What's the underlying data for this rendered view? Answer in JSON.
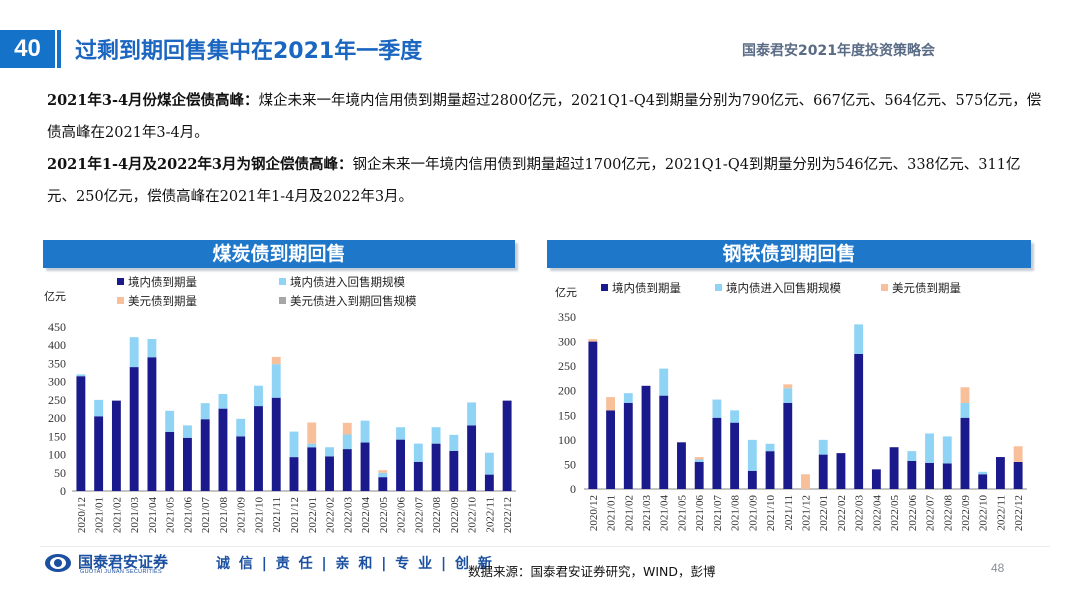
{
  "slide": {
    "number": "40",
    "title": "过剩到期回售集中在2021年一季度",
    "conference": "国泰君安2021年度投资策略会",
    "page": "48"
  },
  "paragraphs": {
    "p1_bold": "2021年3-4月份煤企偿债高峰：",
    "p1_text": "煤企未来一年境内信用债到期量超过2800亿元，2021Q1-Q4到期量分别为790亿元、667亿元、564亿元、575亿元，偿债高峰在2021年3-4月。",
    "p2_bold": "2021年1-4月及2022年3月为钢企偿债高峰：",
    "p2_text": "钢企未来一年境内信用债到期量超过1700亿元，2021Q1-Q4到期量分别为546亿元、338亿元、311亿元、250亿元，偿债高峰在2021年1-4月及2022年3月。"
  },
  "colors": {
    "domestic": "#1a1a8c",
    "domestic_put": "#8fd3f5",
    "usd": "#f7c09a",
    "usd_put": "#a6a6a6",
    "header": "#1f77c9"
  },
  "footer": {
    "logo_cn": "国泰君安证券",
    "logo_en": "GUOTAI JUNAN SECURITIES",
    "motto": "诚 信 | 责 任 | 亲 和 | 专 业 | 创 新",
    "source": "数据来源：国泰君安证券研究，WIND，彭博"
  },
  "chart_data": [
    {
      "type": "bar",
      "stacked": true,
      "title": "煤炭债到期回售",
      "ylabel": "亿元",
      "ylim": [
        0,
        450
      ],
      "yticks": [
        0,
        50,
        100,
        150,
        200,
        250,
        300,
        350,
        400,
        450
      ],
      "grid": false,
      "legend_position": "top",
      "categories": [
        "2020/12",
        "2021/01",
        "2021/02",
        "2021/03",
        "2021/04",
        "2021/05",
        "2021/06",
        "2021/07",
        "2021/08",
        "2021/09",
        "2021/10",
        "2021/11",
        "2021/12",
        "2022/01",
        "2022/02",
        "2022/03",
        "2022/04",
        "2022/05",
        "2022/06",
        "2022/07",
        "2022/08",
        "2022/09",
        "2022/10",
        "2022/11",
        "2022/12"
      ],
      "series": [
        {
          "name": "境内债到期量",
          "values": [
            315,
            205,
            248,
            340,
            367,
            162,
            146,
            197,
            226,
            150,
            233,
            256,
            93,
            120,
            95,
            115,
            133,
            38,
            141,
            80,
            130,
            110,
            180,
            45,
            248
          ]
        },
        {
          "name": "境内债进入回售期规模",
          "values": [
            5,
            45,
            0,
            82,
            50,
            58,
            34,
            44,
            40,
            48,
            56,
            92,
            70,
            10,
            25,
            40,
            60,
            12,
            34,
            50,
            45,
            44,
            63,
            60,
            0
          ]
        },
        {
          "name": "美元债到期量",
          "values": [
            0,
            0,
            0,
            0,
            0,
            0,
            0,
            0,
            0,
            0,
            0,
            20,
            0,
            58,
            0,
            32,
            0,
            7,
            0,
            0,
            0,
            0,
            0,
            0,
            0
          ]
        },
        {
          "name": "美元债进入到期回售规模",
          "values": [
            0,
            0,
            0,
            0,
            0,
            0,
            0,
            0,
            0,
            0,
            0,
            0,
            0,
            0,
            0,
            0,
            0,
            0,
            0,
            0,
            0,
            0,
            0,
            0,
            0
          ]
        }
      ]
    },
    {
      "type": "bar",
      "stacked": true,
      "title": "钢铁债到期回售",
      "ylabel": "亿元",
      "ylim": [
        0,
        350
      ],
      "yticks": [
        0,
        50,
        100,
        150,
        200,
        250,
        300,
        350
      ],
      "grid": false,
      "legend_position": "top",
      "categories": [
        "2020/12",
        "2021/01",
        "2021/02",
        "2021/03",
        "2021/04",
        "2021/05",
        "2021/06",
        "2021/07",
        "2021/08",
        "2021/09",
        "2021/10",
        "2021/11",
        "2021/12",
        "2022/01",
        "2022/02",
        "2022/03",
        "2022/04",
        "2022/05",
        "2022/06",
        "2022/07",
        "2022/08",
        "2022/09",
        "2022/10",
        "2022/11",
        "2022/12"
      ],
      "series": [
        {
          "name": "境内债到期量",
          "values": [
            300,
            160,
            175,
            210,
            190,
            95,
            55,
            145,
            135,
            37,
            77,
            175,
            0,
            70,
            73,
            275,
            40,
            85,
            57,
            53,
            52,
            145,
            30,
            65,
            55
          ]
        },
        {
          "name": "境内债进入回售期规模",
          "values": [
            0,
            0,
            20,
            0,
            55,
            0,
            5,
            37,
            25,
            63,
            15,
            30,
            0,
            30,
            0,
            60,
            0,
            0,
            20,
            60,
            55,
            30,
            5,
            0,
            0
          ]
        },
        {
          "name": "美元债到期量",
          "values": [
            5,
            27,
            0,
            0,
            0,
            0,
            5,
            0,
            0,
            0,
            0,
            8,
            30,
            0,
            0,
            0,
            0,
            0,
            0,
            0,
            0,
            32,
            0,
            0,
            32
          ]
        }
      ]
    }
  ]
}
